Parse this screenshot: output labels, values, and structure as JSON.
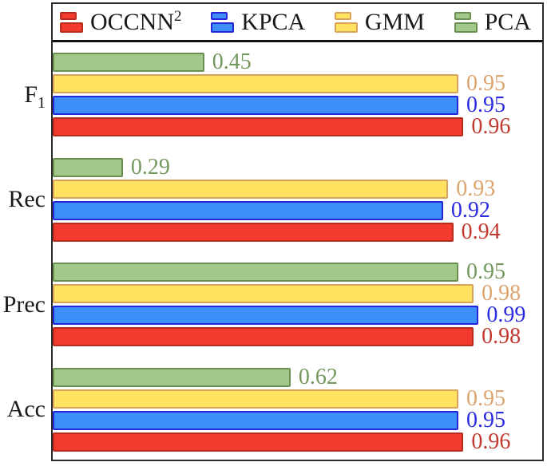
{
  "chart_data": {
    "type": "bar",
    "orientation": "horizontal",
    "title": "",
    "xlabel": "",
    "ylabel": "",
    "grid": false,
    "legend_position": "top",
    "xlim": [
      0.152,
      1.115
    ],
    "bar_order_top_to_bottom": [
      "PCA",
      "GMM",
      "KPCA",
      "OCCNN²"
    ],
    "categories": [
      {
        "text": "F",
        "sub": "1",
        "slug": "f1"
      },
      {
        "text": "Rec",
        "sub": "",
        "slug": "rec"
      },
      {
        "text": "Prec",
        "sub": "",
        "slug": "prec"
      },
      {
        "text": "Acc",
        "sub": "",
        "slug": "acc"
      }
    ],
    "series": [
      {
        "name": "OCCNN²",
        "slug": "occnn2",
        "label_text": "OCCNN",
        "label_sup": "2",
        "fill": "#f23b2e",
        "border": "#b82c20",
        "value_text_color": "#c23a2f",
        "values": [
          0.96,
          0.94,
          0.98,
          0.96
        ]
      },
      {
        "name": "KPCA",
        "slug": "kpca",
        "label_text": "KPCA",
        "label_sup": "",
        "fill": "#3e8ef7",
        "border": "#2525dc",
        "value_text_color": "#2b2be2",
        "values": [
          0.95,
          0.92,
          0.99,
          0.95
        ]
      },
      {
        "name": "GMM",
        "slug": "gmm",
        "label_text": "GMM",
        "label_sup": "",
        "fill": "#ffe25f",
        "border": "#d8a35c",
        "value_text_color": "#dca46e",
        "values": [
          0.95,
          0.93,
          0.98,
          0.95
        ]
      },
      {
        "name": "PCA",
        "slug": "pca",
        "label_text": "PCA",
        "label_sup": "",
        "fill": "#a2c88c",
        "border": "#6b8f52",
        "value_text_color": "#74975d",
        "values": [
          0.45,
          0.29,
          0.95,
          0.62
        ]
      }
    ],
    "value_label_format": "0.00"
  },
  "frame": {
    "border_color": "#2b2b2b",
    "legend_divider_color": "#111111",
    "background": "#ffffff"
  }
}
